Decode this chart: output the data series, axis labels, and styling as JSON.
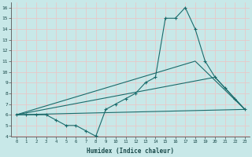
{
  "xlabel": "Humidex (Indice chaleur)",
  "bg_color": "#c8e8e8",
  "grid_color": "#e8c8c8",
  "line_color": "#1a6b6b",
  "xlim": [
    -0.5,
    23.5
  ],
  "ylim": [
    4,
    16.5
  ],
  "xticks": [
    0,
    1,
    2,
    3,
    4,
    5,
    6,
    7,
    8,
    9,
    10,
    11,
    12,
    13,
    14,
    15,
    16,
    17,
    18,
    19,
    20,
    21,
    22,
    23
  ],
  "yticks": [
    4,
    5,
    6,
    7,
    8,
    9,
    10,
    11,
    12,
    13,
    14,
    15,
    16
  ],
  "line1_x": [
    0,
    1,
    2,
    3,
    4,
    5,
    6,
    7,
    8,
    9,
    10,
    11,
    12,
    13,
    14,
    15,
    16,
    17,
    18,
    19,
    20,
    21,
    22,
    23
  ],
  "line1_y": [
    6,
    6,
    6,
    6,
    5.5,
    5,
    5,
    4.5,
    4,
    6.5,
    7,
    7.5,
    8,
    9,
    9.5,
    15,
    15,
    16,
    14,
    11,
    9.5,
    8.5,
    7.5,
    6.5
  ],
  "line2_x": [
    0,
    23
  ],
  "line2_y": [
    6,
    6.5
  ],
  "line3_x": [
    0,
    18,
    23
  ],
  "line3_y": [
    6,
    11,
    6.5
  ],
  "line4_x": [
    0,
    20,
    23
  ],
  "line4_y": [
    6,
    9.5,
    6.5
  ]
}
